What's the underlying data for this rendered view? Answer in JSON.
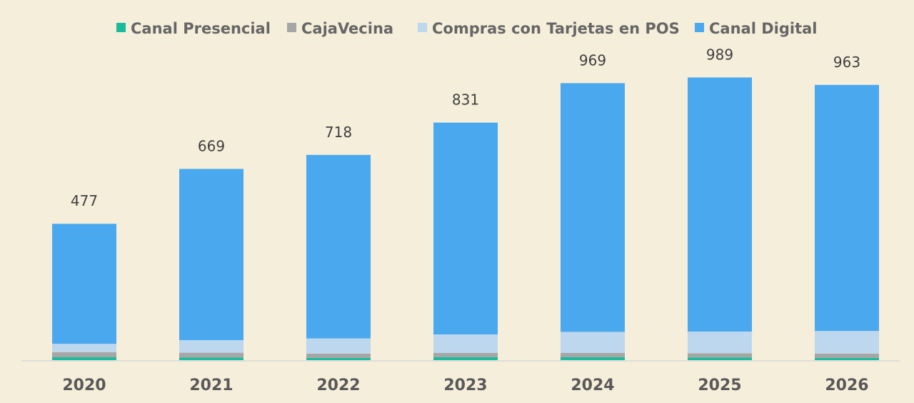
{
  "chart_data": {
    "type": "bar",
    "stacked": true,
    "title": "",
    "xlabel": "",
    "ylabel": "",
    "categories": [
      "2020",
      "2021",
      "2022",
      "2023",
      "2024",
      "2025",
      "2026"
    ],
    "series": [
      {
        "name": "Canal Presencial",
        "color": "#1ABC9C",
        "values": [
          10,
          9,
          8,
          10,
          10,
          9,
          8
        ]
      },
      {
        "name": "CajaVecina",
        "color": "#A6A6A6",
        "values": [
          18,
          17,
          15,
          15,
          15,
          15,
          15
        ]
      },
      {
        "name": "Compras con Tarjetas en POS",
        "color": "#BDD7EE",
        "values": [
          29,
          44,
          53,
          65,
          74,
          76,
          79
        ]
      },
      {
        "name": "Canal Digital",
        "color": "#4AA8EF",
        "values": [
          420,
          599,
          642,
          741,
          870,
          889,
          861
        ]
      }
    ],
    "totals": [
      "477",
      "669",
      "718",
      "831",
      "969",
      "989",
      "963"
    ],
    "ylim": [
      0,
      1000
    ],
    "grid": false,
    "legend_position": "top"
  }
}
